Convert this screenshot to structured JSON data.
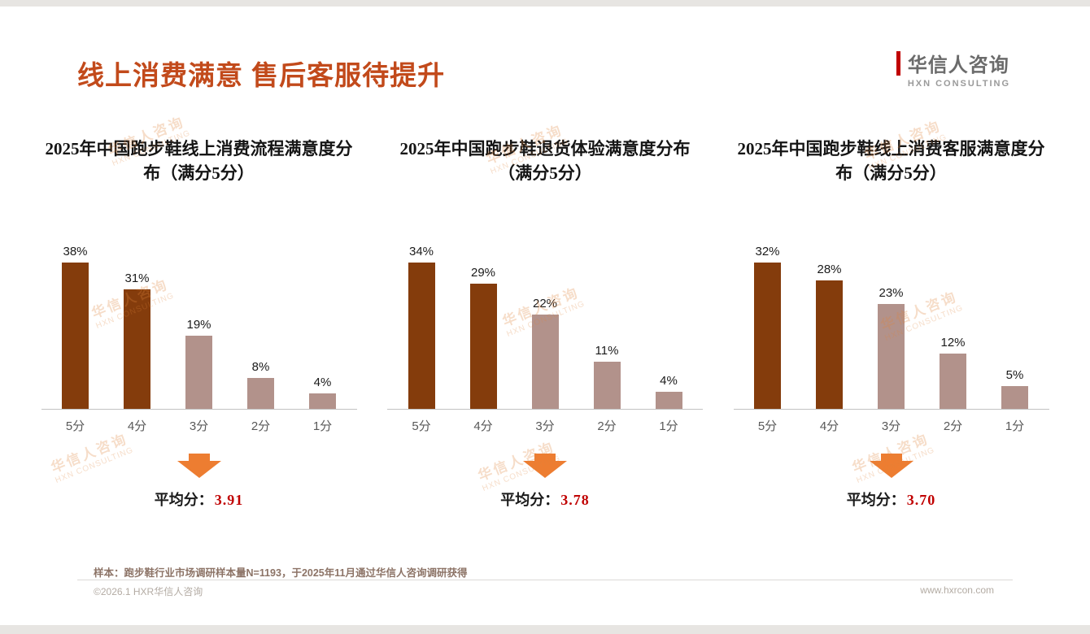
{
  "header": {
    "title": "线上消费满意 售后客服待提升",
    "title_color": "#C24A1B",
    "logo": {
      "cn": "华信人咨询",
      "en": "HXN CONSULTING",
      "accent": "#C00000"
    }
  },
  "watermark": {
    "cn": "华信人咨询",
    "en": "HXN CONSULTING"
  },
  "chart_data": [
    {
      "type": "bar",
      "title": "2025年中国跑步鞋线上消费流程满意度分布（满分5分）",
      "categories": [
        "5分",
        "4分",
        "3分",
        "2分",
        "1分"
      ],
      "values": [
        38,
        31,
        19,
        8,
        4
      ],
      "value_labels": [
        "38%",
        "31%",
        "19%",
        "8%",
        "4%"
      ],
      "unit": "%",
      "average_prefix": "平均分：",
      "average": "3.91"
    },
    {
      "type": "bar",
      "title": "2025年中国跑步鞋退货体验满意度分布（满分5分）",
      "categories": [
        "5分",
        "4分",
        "3分",
        "2分",
        "1分"
      ],
      "values": [
        34,
        29,
        22,
        11,
        4
      ],
      "value_labels": [
        "34%",
        "29%",
        "22%",
        "11%",
        "4%"
      ],
      "unit": "%",
      "average_prefix": "平均分：",
      "average": "3.78"
    },
    {
      "type": "bar",
      "title": "2025年中国跑步鞋线上消费客服满意度分布（满分5分）",
      "categories": [
        "5分",
        "4分",
        "3分",
        "2分",
        "1分"
      ],
      "values": [
        32,
        28,
        23,
        12,
        5
      ],
      "value_labels": [
        "32%",
        "28%",
        "23%",
        "12%",
        "5%"
      ],
      "unit": "%",
      "average_prefix": "平均分：",
      "average": "3.70"
    }
  ],
  "style": {
    "bar_color_high": "#843C0C",
    "bar_color_low": "#B2928B",
    "high_score_count": 2,
    "arrow_color": "#ED7D31",
    "average_color": "#C00000",
    "axis_color": "#C2C2C2"
  },
  "footer": {
    "note": "样本：跑步鞋行业市场调研样本量N=1193，于2025年11月通过华信人咨询调研获得",
    "copyright": "©2026.1 HXR华信人咨询",
    "website": "www.hxrcon.com"
  }
}
